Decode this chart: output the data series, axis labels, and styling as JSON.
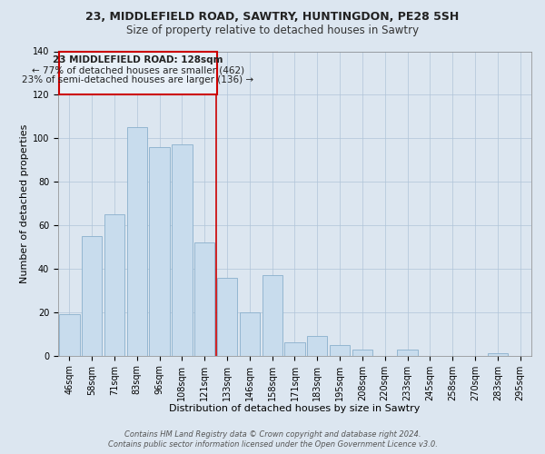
{
  "title": "23, MIDDLEFIELD ROAD, SAWTRY, HUNTINGDON, PE28 5SH",
  "subtitle": "Size of property relative to detached houses in Sawtry",
  "xlabel": "Distribution of detached houses by size in Sawtry",
  "ylabel": "Number of detached properties",
  "categories": [
    "46sqm",
    "58sqm",
    "71sqm",
    "83sqm",
    "96sqm",
    "108sqm",
    "121sqm",
    "133sqm",
    "146sqm",
    "158sqm",
    "171sqm",
    "183sqm",
    "195sqm",
    "208sqm",
    "220sqm",
    "233sqm",
    "245sqm",
    "258sqm",
    "270sqm",
    "283sqm",
    "295sqm"
  ],
  "values": [
    19,
    55,
    65,
    105,
    96,
    97,
    52,
    36,
    20,
    37,
    6,
    9,
    5,
    3,
    0,
    3,
    0,
    0,
    0,
    1,
    0
  ],
  "bar_color": "#c8dced",
  "bar_edge_color": "#8ab0cc",
  "annotation_text_line1": "23 MIDDLEFIELD ROAD: 128sqm",
  "annotation_text_line2": "← 77% of detached houses are smaller (462)",
  "annotation_text_line3": "23% of semi-detached houses are larger (136) →",
  "annotation_box_facecolor": "#e8f0f8",
  "annotation_box_edgecolor": "#cc0000",
  "vertical_line_color": "#cc0000",
  "vertical_line_x": 6.5,
  "ylim": [
    0,
    140
  ],
  "yticks": [
    0,
    20,
    40,
    60,
    80,
    100,
    120,
    140
  ],
  "background_color": "#dce6f0",
  "plot_background_color": "#dce6f0",
  "grid_color": "#b0c4d8",
  "title_fontsize": 9,
  "subtitle_fontsize": 8.5,
  "axis_label_fontsize": 8,
  "tick_fontsize": 7,
  "annotation_fontsize": 7.5,
  "footer_fontsize": 6
}
